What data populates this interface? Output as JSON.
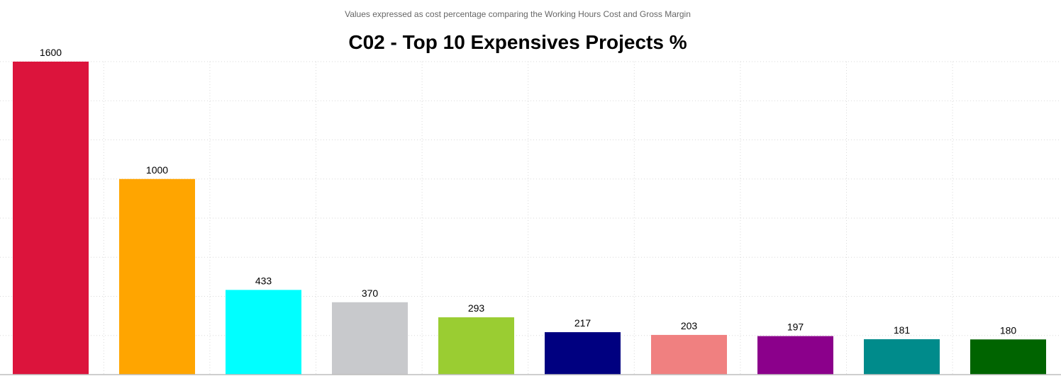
{
  "chart_data": {
    "type": "bar",
    "title": "C02 - Top 10 Expensives Projects %",
    "subtitle": "Values expressed as cost percentage comparing the Working Hours Cost and Gross Margin",
    "categories": [
      "",
      "",
      "",
      "",
      "",
      "",
      "",
      "",
      "",
      ""
    ],
    "values": [
      1600,
      1000,
      433,
      370,
      293,
      217,
      203,
      197,
      181,
      180
    ],
    "colors": [
      "#dc143c",
      "#ffa500",
      "#00ffff",
      "#c8c9cc",
      "#9acd32",
      "#000080",
      "#f08080",
      "#8b008b",
      "#008b8b",
      "#006400"
    ],
    "ylim": [
      0,
      1600
    ],
    "grid": true,
    "legend": "none",
    "xlabel": "",
    "ylabel": ""
  }
}
